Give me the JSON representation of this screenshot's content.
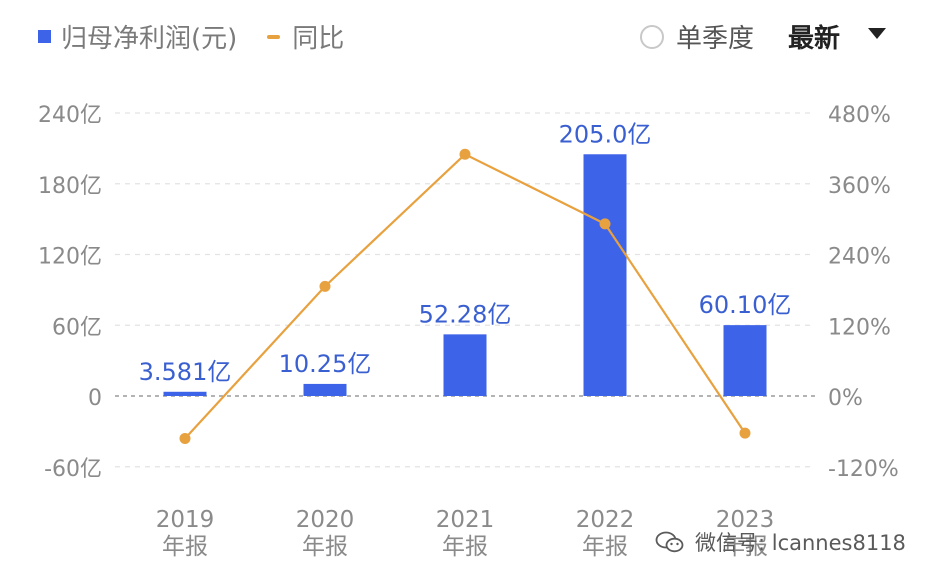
{
  "legend": {
    "bar_label": "归母净利润(元)",
    "line_label": "同比"
  },
  "controls": {
    "radio_label": "单季度",
    "dropdown_label": "最新"
  },
  "watermark": {
    "text": "微信号: lcannes8118"
  },
  "colors": {
    "bar": "#3d63e8",
    "line": "#e8a13f",
    "bar_label": "#3a5fd0",
    "axis_text": "#8a8a8a",
    "grid": "#e3e3e3"
  },
  "chart_data": {
    "type": "bar",
    "categories": [
      "2019\n年报",
      "2020\n年报",
      "2021\n年报",
      "2022\n年报",
      "2023\n年报"
    ],
    "series": [
      {
        "name": "归母净利润(元)",
        "type": "bar",
        "axis": "left",
        "values": [
          3.581,
          10.25,
          52.28,
          205.0,
          60.1
        ],
        "data_labels": [
          "3.581亿",
          "10.25亿",
          "52.28亿",
          "205.0亿",
          "60.10亿"
        ]
      },
      {
        "name": "同比",
        "type": "line",
        "axis": "right",
        "values": [
          -72,
          186,
          410,
          292,
          -63
        ]
      }
    ],
    "y_left": {
      "ticks": [
        "240亿",
        "180亿",
        "120亿",
        "60亿",
        "0",
        "-60亿"
      ],
      "tick_values": [
        240,
        180,
        120,
        60,
        0,
        -60
      ],
      "range": [
        -60,
        240
      ]
    },
    "y_right": {
      "ticks": [
        "480%",
        "360%",
        "240%",
        "120%",
        "0%",
        "-120%"
      ],
      "tick_values": [
        480,
        360,
        240,
        120,
        0,
        -120
      ],
      "range": [
        -120,
        480
      ]
    },
    "grid": true,
    "legend_position": "top-left"
  }
}
